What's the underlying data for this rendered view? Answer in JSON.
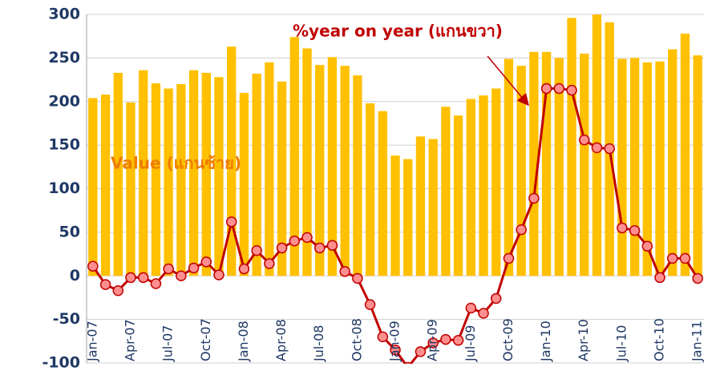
{
  "chart_data": {
    "type": "bar",
    "annotations": [
      "%year on year (แกนขวา)",
      "Value (แกนซ้าย)"
    ],
    "categories": [
      "Jan-07",
      null,
      null,
      "Apr-07",
      null,
      null,
      "Jul-07",
      null,
      null,
      "Oct-07",
      null,
      null,
      "Jan-08",
      null,
      null,
      "Apr-08",
      null,
      null,
      "Jul-08",
      null,
      null,
      "Oct-08",
      null,
      null,
      "Jan-09",
      null,
      null,
      "Apr-09",
      null,
      null,
      "Jul-09",
      null,
      null,
      "Oct-09",
      null,
      null,
      "Jan-10",
      null,
      null,
      "Apr-10",
      null,
      null,
      "Jul-10",
      null,
      null,
      "Oct-10",
      null,
      null,
      "Jan-11"
    ],
    "series": [
      {
        "type": "bar",
        "color": "#ffc000",
        "values": [
          204,
          208,
          233,
          199,
          236,
          221,
          215,
          220,
          236,
          233,
          228,
          263,
          210,
          232,
          245,
          223,
          274,
          261,
          242,
          251,
          241,
          230,
          198,
          189,
          138,
          134,
          160,
          157,
          194,
          184,
          203,
          207,
          215,
          249,
          241,
          257,
          257,
          250,
          296,
          255,
          300,
          291,
          249,
          250,
          245,
          246,
          260,
          278,
          253
        ]
      },
      {
        "type": "line",
        "color": "#c00000",
        "marker_color": "#ff8f8f",
        "values": [
          11,
          -10,
          -17,
          -2,
          -2,
          -9,
          8,
          0,
          9,
          16,
          1,
          62,
          8,
          29,
          14,
          32,
          40,
          44,
          32,
          35,
          5,
          -3,
          -33,
          -70,
          -85,
          -105,
          -87,
          -77,
          -73,
          -74,
          -37,
          -43,
          -26,
          20,
          53,
          89,
          215,
          215,
          213,
          156,
          147,
          146,
          55,
          52,
          34,
          -2,
          20,
          20,
          -3
        ]
      }
    ],
    "ylim": [
      -100,
      300
    ],
    "yticks": [
      -100,
      -50,
      0,
      50,
      100,
      150,
      200,
      250,
      300
    ],
    "grid": true
  }
}
